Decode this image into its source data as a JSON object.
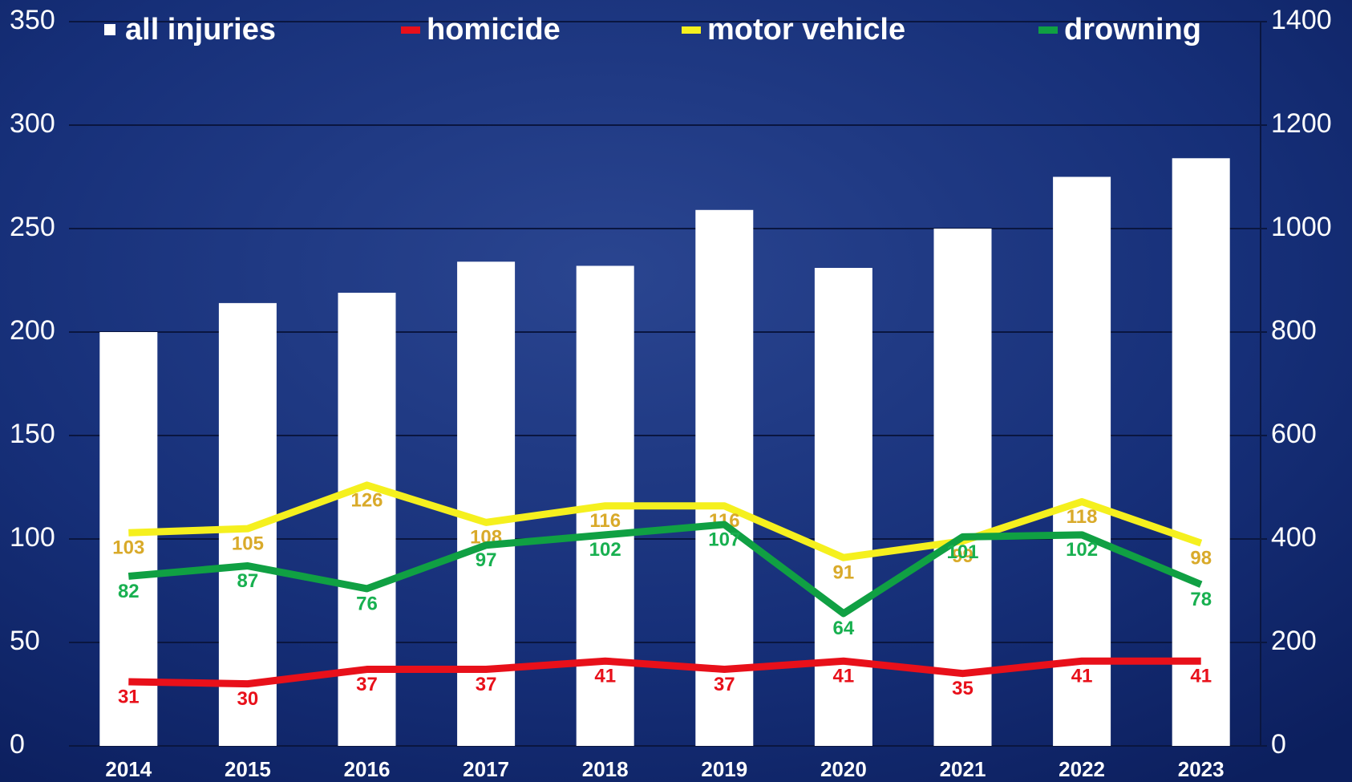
{
  "chart_data": {
    "type": "bar_line",
    "categories": [
      "2014",
      "2015",
      "2016",
      "2017",
      "2018",
      "2019",
      "2020",
      "2021",
      "2022",
      "2023"
    ],
    "series": [
      {
        "name": "all injuries",
        "type": "bar",
        "axis": "y2",
        "color": "#ffffff",
        "values": [
          800,
          856,
          876,
          936,
          928,
          1036,
          924,
          1000,
          1100,
          1136
        ]
      },
      {
        "name": "homicide",
        "type": "line",
        "color": "#e8101a",
        "label_color": "#e8101a",
        "values": [
          31,
          30,
          37,
          37,
          41,
          37,
          41,
          35,
          41,
          41
        ]
      },
      {
        "name": "motor vehicle",
        "type": "line",
        "color": "#f5f01e",
        "label_color": "#d9aa2a",
        "values": [
          103,
          105,
          126,
          108,
          116,
          116,
          91,
          99,
          118,
          98
        ]
      },
      {
        "name": "drowning",
        "type": "line",
        "color": "#10a043",
        "label_color": "#18b050",
        "values": [
          82,
          87,
          76,
          97,
          102,
          107,
          64,
          101,
          102,
          78
        ]
      }
    ],
    "ylim": [
      0,
      350
    ],
    "yticks": [
      0,
      50,
      100,
      150,
      200,
      250,
      300,
      350
    ],
    "y2lim": [
      0,
      1400
    ],
    "y2ticks": [
      0,
      200,
      400,
      600,
      800,
      1000,
      1200,
      1400
    ],
    "grid": true
  }
}
